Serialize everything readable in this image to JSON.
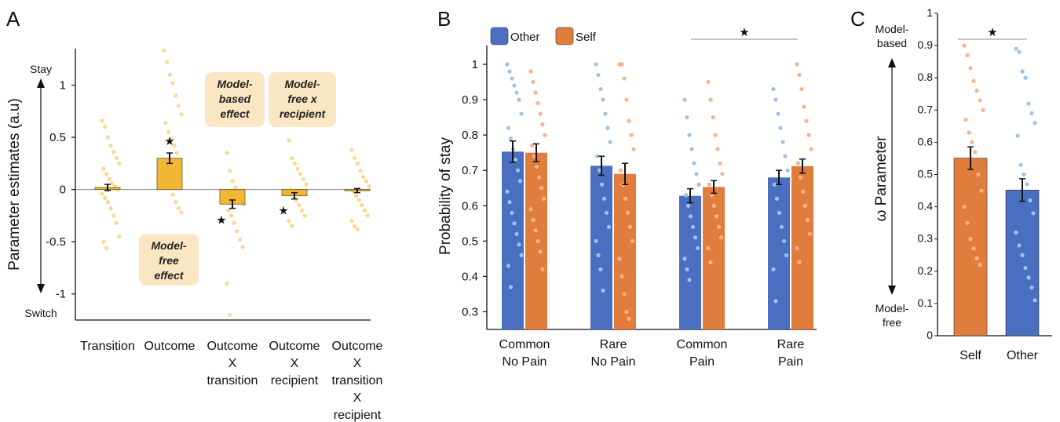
{
  "chart_data": [
    {
      "panel": "A",
      "type": "bar",
      "ylabel": "Parameter estimates (a.u)",
      "ylim": [
        -1.25,
        1.35
      ],
      "yticks": [
        1,
        0.5,
        0,
        -0.5,
        -1
      ],
      "ytick_labels": [
        "1",
        "0.5",
        "0",
        "-0.5",
        "-1"
      ],
      "axis_top_label": "Stay",
      "axis_bottom_label": "Switch",
      "categories": [
        [
          "Transition"
        ],
        [
          "Outcome"
        ],
        [
          "Outcome",
          "X",
          "transition"
        ],
        [
          "Outcome",
          "X",
          "recipient"
        ],
        [
          "Outcome",
          "X",
          "transition",
          "X",
          "recipient"
        ]
      ],
      "values": [
        0.02,
        0.3,
        -0.14,
        -0.06,
        -0.01
      ],
      "errors": [
        0.03,
        0.05,
        0.04,
        0.03,
        0.02
      ],
      "significant": [
        false,
        true,
        true,
        true,
        false
      ],
      "bar_color": "#f2b635",
      "dot_color": "#f9d88f",
      "annotations": [
        {
          "lines": [
            "Model-",
            "free",
            "effect"
          ]
        },
        {
          "lines": [
            "Model-",
            "based",
            "effect"
          ]
        },
        {
          "lines": [
            "Model-",
            "free x",
            "recipient"
          ]
        }
      ],
      "points": [
        [
          0.66,
          0.6,
          0.5,
          0.42,
          0.36,
          0.3,
          0.25,
          0.2,
          0.15,
          0.1,
          0.06,
          0.03,
          0.0,
          -0.04,
          -0.08,
          -0.12,
          -0.18,
          -0.25,
          -0.32,
          -0.45,
          -0.5,
          -0.56
        ],
        [
          1.33,
          1.22,
          1.1,
          1.02,
          0.9,
          0.8,
          0.72,
          0.64,
          0.55,
          0.48,
          0.42,
          0.35,
          0.28,
          0.2,
          0.12,
          0.05,
          -0.05,
          -0.12,
          -0.18,
          -0.22
        ],
        [
          0.35,
          0.18,
          0.08,
          0.02,
          -0.05,
          -0.1,
          -0.14,
          -0.2,
          -0.25,
          -0.32,
          -0.4,
          -0.48,
          -0.55,
          -0.9,
          -1.2
        ],
        [
          0.47,
          0.3,
          0.25,
          0.2,
          0.15,
          0.1,
          0.05,
          0.0,
          -0.05,
          -0.1,
          -0.15,
          -0.2,
          -0.25,
          -0.3,
          -0.35
        ],
        [
          0.38,
          0.3,
          0.25,
          0.18,
          0.12,
          0.08,
          0.03,
          -0.02,
          -0.06,
          -0.1,
          -0.15,
          -0.2,
          -0.25,
          -0.3,
          -0.35,
          -0.38
        ]
      ]
    },
    {
      "panel": "B",
      "type": "bar",
      "ylabel": "Probability of stay",
      "ylim": [
        0.25,
        1.02
      ],
      "yticks": [
        1,
        0.9,
        0.8,
        0.7,
        0.6,
        0.5,
        0.4,
        0.3
      ],
      "ytick_labels": [
        "1",
        "0.9",
        "0.8",
        "0.7",
        "0.6",
        "0.5",
        "0.4",
        "0.3"
      ],
      "categories": [
        [
          "Common",
          "No Pain"
        ],
        [
          "Rare",
          "No Pain"
        ],
        [
          "Common",
          "Pain"
        ],
        [
          "Rare",
          "Pain"
        ]
      ],
      "series": [
        {
          "name": "Other",
          "color": "#4a6fc0",
          "dot_color": "#9cc3ea",
          "values": [
            0.753,
            0.713,
            0.628,
            0.68
          ],
          "errors": [
            0.03,
            0.027,
            0.02,
            0.02
          ]
        },
        {
          "name": "Self",
          "color": "#e07d3c",
          "dot_color": "#f6b48d",
          "values": [
            0.75,
            0.69,
            0.653,
            0.712
          ],
          "errors": [
            0.025,
            0.03,
            0.018,
            0.02
          ]
        }
      ],
      "points": [
        [
          [
            1.0,
            0.98,
            0.96,
            0.94,
            0.92,
            0.9,
            0.86,
            0.82,
            0.79,
            0.76,
            0.73,
            0.7,
            0.67,
            0.64,
            0.61,
            0.58,
            0.55,
            0.52,
            0.49,
            0.46,
            0.43,
            0.37
          ],
          [
            0.98,
            0.95,
            0.92,
            0.89,
            0.86,
            0.83,
            0.8,
            0.77,
            0.74,
            0.71,
            0.68,
            0.65,
            0.62,
            0.59,
            0.56,
            0.53,
            0.5,
            0.47,
            0.42
          ]
        ],
        [
          [
            1.0,
            0.97,
            0.93,
            0.9,
            0.86,
            0.82,
            0.78,
            0.74,
            0.7,
            0.66,
            0.62,
            0.58,
            0.54,
            0.5,
            0.46,
            0.42,
            0.36
          ],
          [
            1.0,
            1.0,
            0.96,
            0.9,
            0.84,
            0.8,
            0.76,
            0.7,
            0.66,
            0.62,
            0.58,
            0.54,
            0.5,
            0.45,
            0.4,
            0.35,
            0.3,
            0.28
          ]
        ],
        [
          [
            0.9,
            0.85,
            0.8,
            0.76,
            0.72,
            0.69,
            0.66,
            0.63,
            0.6,
            0.57,
            0.54,
            0.51,
            0.48,
            0.45,
            0.42,
            0.39
          ],
          [
            0.95,
            0.9,
            0.85,
            0.8,
            0.76,
            0.72,
            0.69,
            0.66,
            0.63,
            0.6,
            0.57,
            0.54,
            0.51,
            0.48,
            0.44
          ]
        ],
        [
          [
            0.93,
            0.9,
            0.86,
            0.82,
            0.78,
            0.74,
            0.7,
            0.66,
            0.62,
            0.58,
            0.54,
            0.5,
            0.46,
            0.42,
            0.33
          ],
          [
            1.0,
            0.97,
            0.93,
            0.88,
            0.84,
            0.8,
            0.76,
            0.72,
            0.68,
            0.64,
            0.6,
            0.56,
            0.52,
            0.48,
            0.44
          ]
        ]
      ],
      "significance_star": "★"
    },
    {
      "panel": "C",
      "type": "bar",
      "ylabel": "ω Parameter",
      "ylim": [
        0,
        1
      ],
      "yticks": [
        1,
        0.9,
        0.8,
        0.7,
        0.6,
        0.5,
        0.4,
        0.3,
        0.2,
        0.1,
        0
      ],
      "ytick_labels": [
        "1",
        "0.9",
        "0.8",
        "0.7",
        "0.6",
        "0.5",
        "0.4",
        "0.3",
        "0.2",
        "0.1",
        "0"
      ],
      "axis_top_label": [
        "Model-",
        "based"
      ],
      "axis_bottom_label": [
        "Model-",
        "free"
      ],
      "categories": [
        "Self",
        "Other"
      ],
      "values": [
        0.551,
        0.452
      ],
      "errors": [
        0.035,
        0.035
      ],
      "colors": [
        "#e07d3c",
        "#4a6fc0"
      ],
      "dot_colors": [
        "#f6b48d",
        "#9cc3ea"
      ],
      "points": [
        [
          0.9,
          0.87,
          0.83,
          0.79,
          0.76,
          0.73,
          0.7,
          0.67,
          0.63,
          0.6,
          0.57,
          0.5,
          0.45,
          0.4,
          0.35,
          0.3,
          0.27,
          0.24,
          0.22
        ],
        [
          0.89,
          0.88,
          0.82,
          0.8,
          0.72,
          0.69,
          0.66,
          0.62,
          0.53,
          0.5,
          0.47,
          0.42,
          0.38,
          0.32,
          0.28,
          0.25,
          0.21,
          0.18,
          0.15,
          0.11
        ]
      ],
      "significance_star": "★"
    }
  ],
  "panels": {
    "a": "A",
    "b": "B",
    "c": "C"
  }
}
